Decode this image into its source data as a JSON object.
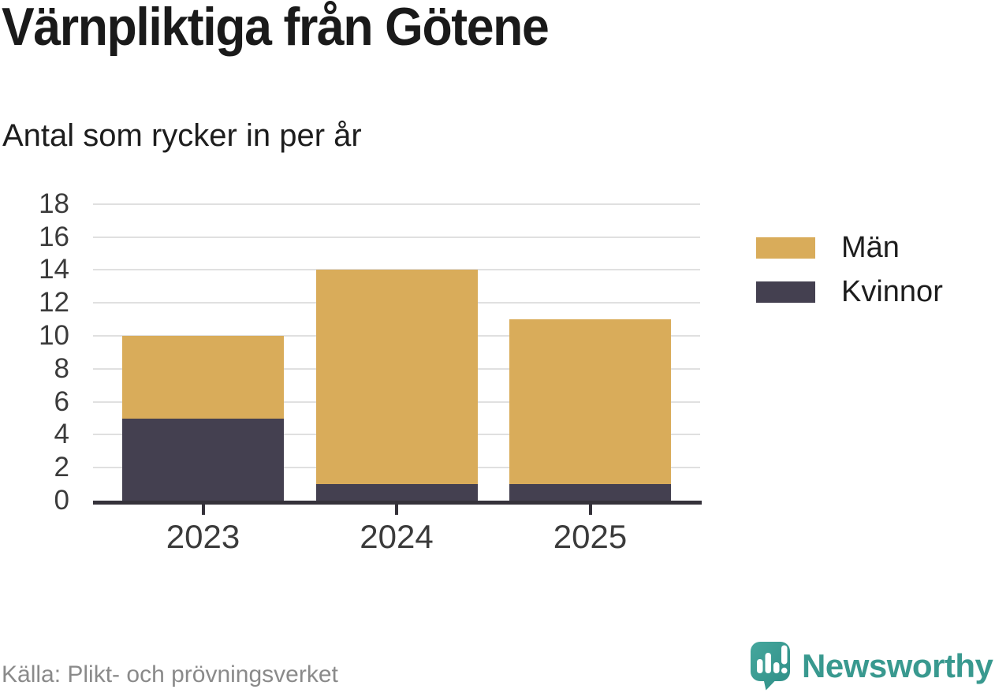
{
  "chart_data": {
    "type": "bar",
    "stacked": true,
    "title": "Värnpliktiga från Götene",
    "subtitle": "Antal som rycker in per år",
    "categories": [
      "2023",
      "2024",
      "2025"
    ],
    "series": [
      {
        "name": "Kvinnor",
        "color": "#444050",
        "values": [
          5,
          1,
          1
        ]
      },
      {
        "name": "Män",
        "color": "#d9ac5a",
        "values": [
          5,
          13,
          10
        ]
      }
    ],
    "stack_totals": [
      10,
      14,
      11
    ],
    "legend_order": [
      "Män",
      "Kvinnor"
    ],
    "legend_position": "right",
    "xlabel": "",
    "ylabel": "",
    "ylim": [
      0,
      18
    ],
    "yticks": [
      0,
      2,
      4,
      6,
      8,
      10,
      12,
      14,
      16,
      18
    ],
    "grid": "horizontal-only"
  },
  "footer": {
    "source": "Källa: Plikt- och prövningsverket",
    "brand": "Newsworthy"
  },
  "colors": {
    "axis": "#35323a",
    "grid": "#e0e0e0",
    "tick_label": "#3b3b3b",
    "source_text": "#8a8a8a",
    "brand_teal": "#39998f",
    "icon_teal_light": "#45a79d",
    "icon_teal_dark": "#2f8e86"
  }
}
